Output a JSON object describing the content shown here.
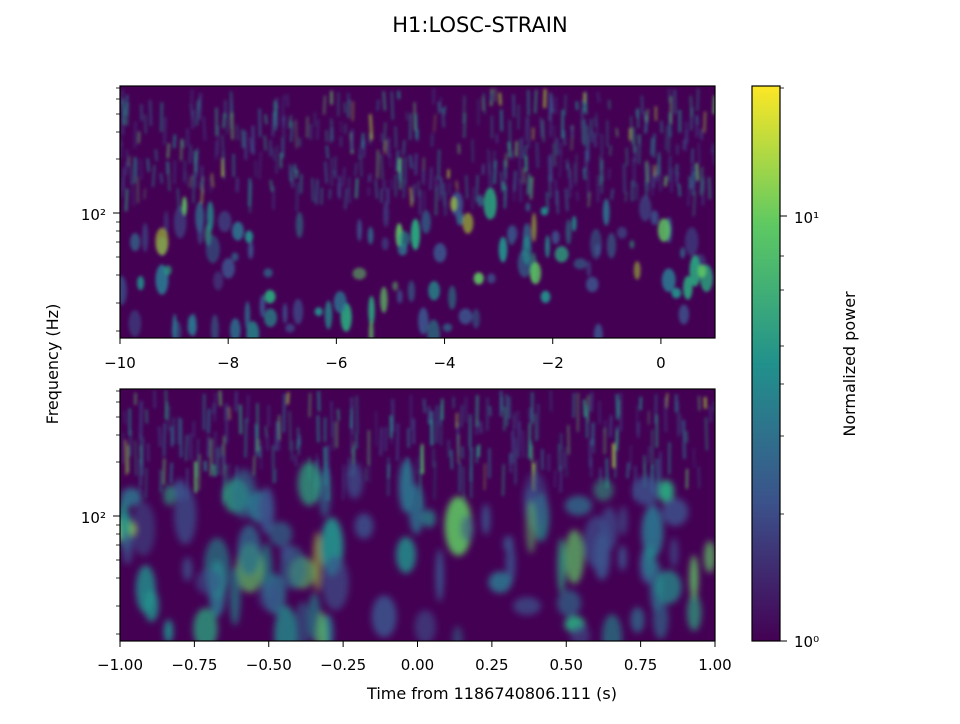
{
  "chart_data": [
    {
      "type": "heatmap",
      "title": "H1:LOSC-STRAIN",
      "ylabel": "Frequency (Hz)",
      "xlabel": "",
      "xlim": [
        -10,
        1
      ],
      "ylim_scale": "log",
      "x_ticks": [
        -10,
        -8,
        -6,
        -4,
        -2,
        0
      ],
      "x_tick_labels": [
        "−10",
        "−8",
        "−6",
        "−4",
        "−2",
        "0"
      ],
      "y_tick_labels": [
        "10²"
      ],
      "colormap": "viridis"
    },
    {
      "type": "heatmap",
      "ylabel": "Frequency (Hz)",
      "xlabel": "Time from 1186740806.111 (s)",
      "xlim": [
        -1,
        1
      ],
      "ylim_scale": "log",
      "x_ticks": [
        -1,
        -0.75,
        -0.5,
        -0.25,
        0,
        0.25,
        0.5,
        0.75,
        1
      ],
      "x_tick_labels": [
        "−1.00",
        "−0.75",
        "−0.50",
        "−0.25",
        "0.00",
        "0.25",
        "0.50",
        "0.75",
        "1.00"
      ],
      "y_tick_labels": [
        "10²"
      ],
      "colormap": "viridis"
    }
  ],
  "figure": {
    "title": "H1:LOSC-STRAIN",
    "ylabel": "Frequency (Hz)",
    "xlabel": "Time from 1186740806.111 (s)"
  },
  "colorbar": {
    "label": "Normalized power",
    "scale": "log",
    "range": [
      1,
      20
    ],
    "tick_labels": [
      "10⁰",
      "10¹"
    ],
    "colormap_stops": [
      "#440154",
      "#3b528b",
      "#21918c",
      "#5ec962",
      "#fde725"
    ]
  }
}
